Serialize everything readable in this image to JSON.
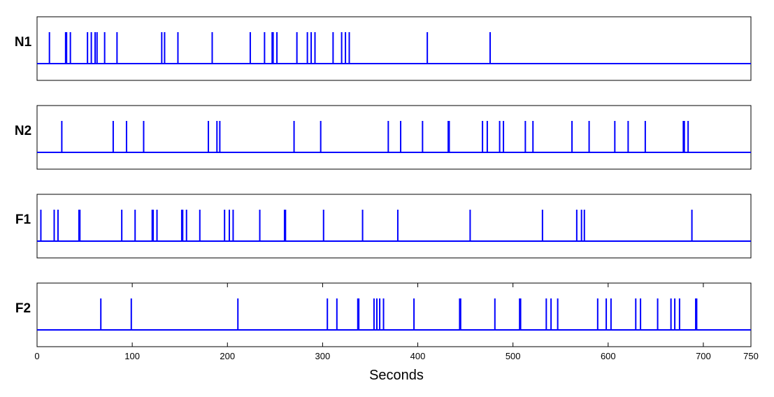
{
  "chart_data": {
    "type": "spike-raster",
    "xlabel": "Seconds",
    "xlim": [
      0,
      750
    ],
    "xticks": [
      0,
      100,
      200,
      300,
      400,
      500,
      600,
      700,
      750
    ],
    "line_color": "#0000ff",
    "panels": [
      {
        "label": "N1",
        "spikes": [
          13,
          30,
          31,
          35,
          53,
          57,
          61,
          63,
          71,
          84,
          131,
          134,
          148,
          184,
          224,
          239,
          247,
          248,
          252,
          273,
          284,
          288,
          292,
          311,
          320,
          324,
          328,
          410,
          476
        ]
      },
      {
        "label": "N2",
        "spikes": [
          26,
          80,
          94,
          112,
          180,
          189,
          192,
          270,
          298,
          369,
          382,
          405,
          432,
          433,
          468,
          473,
          486,
          490,
          513,
          521,
          562,
          580,
          607,
          621,
          639,
          679,
          680,
          684
        ]
      },
      {
        "label": "F1",
        "spikes": [
          4,
          18,
          22,
          44,
          45,
          89,
          103,
          121,
          122,
          126,
          152,
          153,
          157,
          171,
          197,
          202,
          206,
          234,
          260,
          261,
          301,
          342,
          379,
          455,
          531,
          567,
          572,
          575,
          688
        ]
      },
      {
        "label": "F2",
        "spikes": [
          67,
          99,
          211,
          305,
          315,
          337,
          338,
          354,
          357,
          360,
          364,
          396,
          444,
          445,
          481,
          507,
          508,
          535,
          540,
          547,
          589,
          598,
          603,
          629,
          634,
          652,
          666,
          670,
          675,
          692,
          693
        ]
      }
    ]
  }
}
